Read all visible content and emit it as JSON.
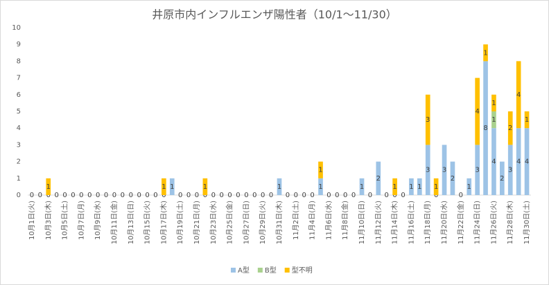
{
  "chart_data": {
    "type": "stacked_bar",
    "title": "井原市内インフルエンザ陽性者（10/1～11/30）",
    "categories": [
      "10月1日(火)",
      null,
      "10月3日(木)",
      null,
      "10月5日(土)",
      null,
      "10月7日(月)",
      null,
      "10月9日(水)",
      null,
      "10月11日(金)",
      null,
      "10月13日(日)",
      null,
      "10月15日(火)",
      null,
      "10月17日(木)",
      null,
      "10月19日(土)",
      null,
      "10月21日(月)",
      null,
      "10月23日(水)",
      null,
      "10月25日(金)",
      null,
      "10月27日(日)",
      null,
      "10月29日(火)",
      null,
      "10月31日(木)",
      null,
      "11月2日(土)",
      null,
      "11月4日(月)",
      null,
      "11月6日(水)",
      null,
      "11月8日(金)",
      null,
      "11月10日(日)",
      null,
      "11月12日(火)",
      null,
      "11月14日(木)",
      null,
      "11月16日(土)",
      null,
      "11月18日(月)",
      null,
      "11月20日(水)",
      null,
      "11月22日(金)",
      null,
      "11月24日(日)",
      null,
      "11月26日(火)",
      null,
      "11月28日(木)",
      null,
      "11月30日(土)"
    ],
    "series": [
      {
        "name": "A型",
        "color": "#9dc3e6",
        "values": [
          0,
          0,
          0,
          0,
          0,
          0,
          0,
          0,
          0,
          0,
          0,
          0,
          0,
          0,
          0,
          0,
          0,
          1,
          0,
          0,
          0,
          0,
          0,
          0,
          0,
          0,
          0,
          0,
          0,
          0,
          1,
          0,
          0,
          0,
          0,
          1,
          0,
          0,
          0,
          0,
          1,
          0,
          2,
          0,
          0,
          0,
          1,
          1,
          3,
          0,
          3,
          2,
          0,
          1,
          3,
          8,
          4,
          2,
          3,
          4,
          4
        ]
      },
      {
        "name": "B型",
        "color": "#a9d18e",
        "values": [
          0,
          0,
          0,
          0,
          0,
          0,
          0,
          0,
          0,
          0,
          0,
          0,
          0,
          0,
          0,
          0,
          0,
          0,
          0,
          0,
          0,
          0,
          0,
          0,
          0,
          0,
          0,
          0,
          0,
          0,
          0,
          0,
          0,
          0,
          0,
          0,
          0,
          0,
          0,
          0,
          0,
          0,
          0,
          0,
          0,
          0,
          0,
          0,
          0,
          0,
          0,
          0,
          0,
          0,
          0,
          0,
          1,
          0,
          0,
          0,
          0
        ]
      },
      {
        "name": "型不明",
        "color": "#ffc000",
        "values": [
          0,
          0,
          1,
          0,
          0,
          0,
          0,
          0,
          0,
          0,
          0,
          0,
          0,
          0,
          0,
          0,
          1,
          0,
          0,
          0,
          0,
          1,
          0,
          0,
          0,
          0,
          0,
          0,
          0,
          0,
          0,
          0,
          0,
          0,
          0,
          1,
          0,
          0,
          0,
          0,
          0,
          0,
          0,
          0,
          1,
          0,
          0,
          0,
          3,
          1,
          0,
          0,
          0,
          0,
          4,
          1,
          1,
          0,
          2,
          4,
          1
        ]
      }
    ],
    "ylim": [
      0,
      10
    ],
    "yticks": [
      0,
      1,
      2,
      3,
      4,
      5,
      6,
      7,
      8,
      9,
      10
    ],
    "grid": false,
    "legend": "bottom"
  }
}
